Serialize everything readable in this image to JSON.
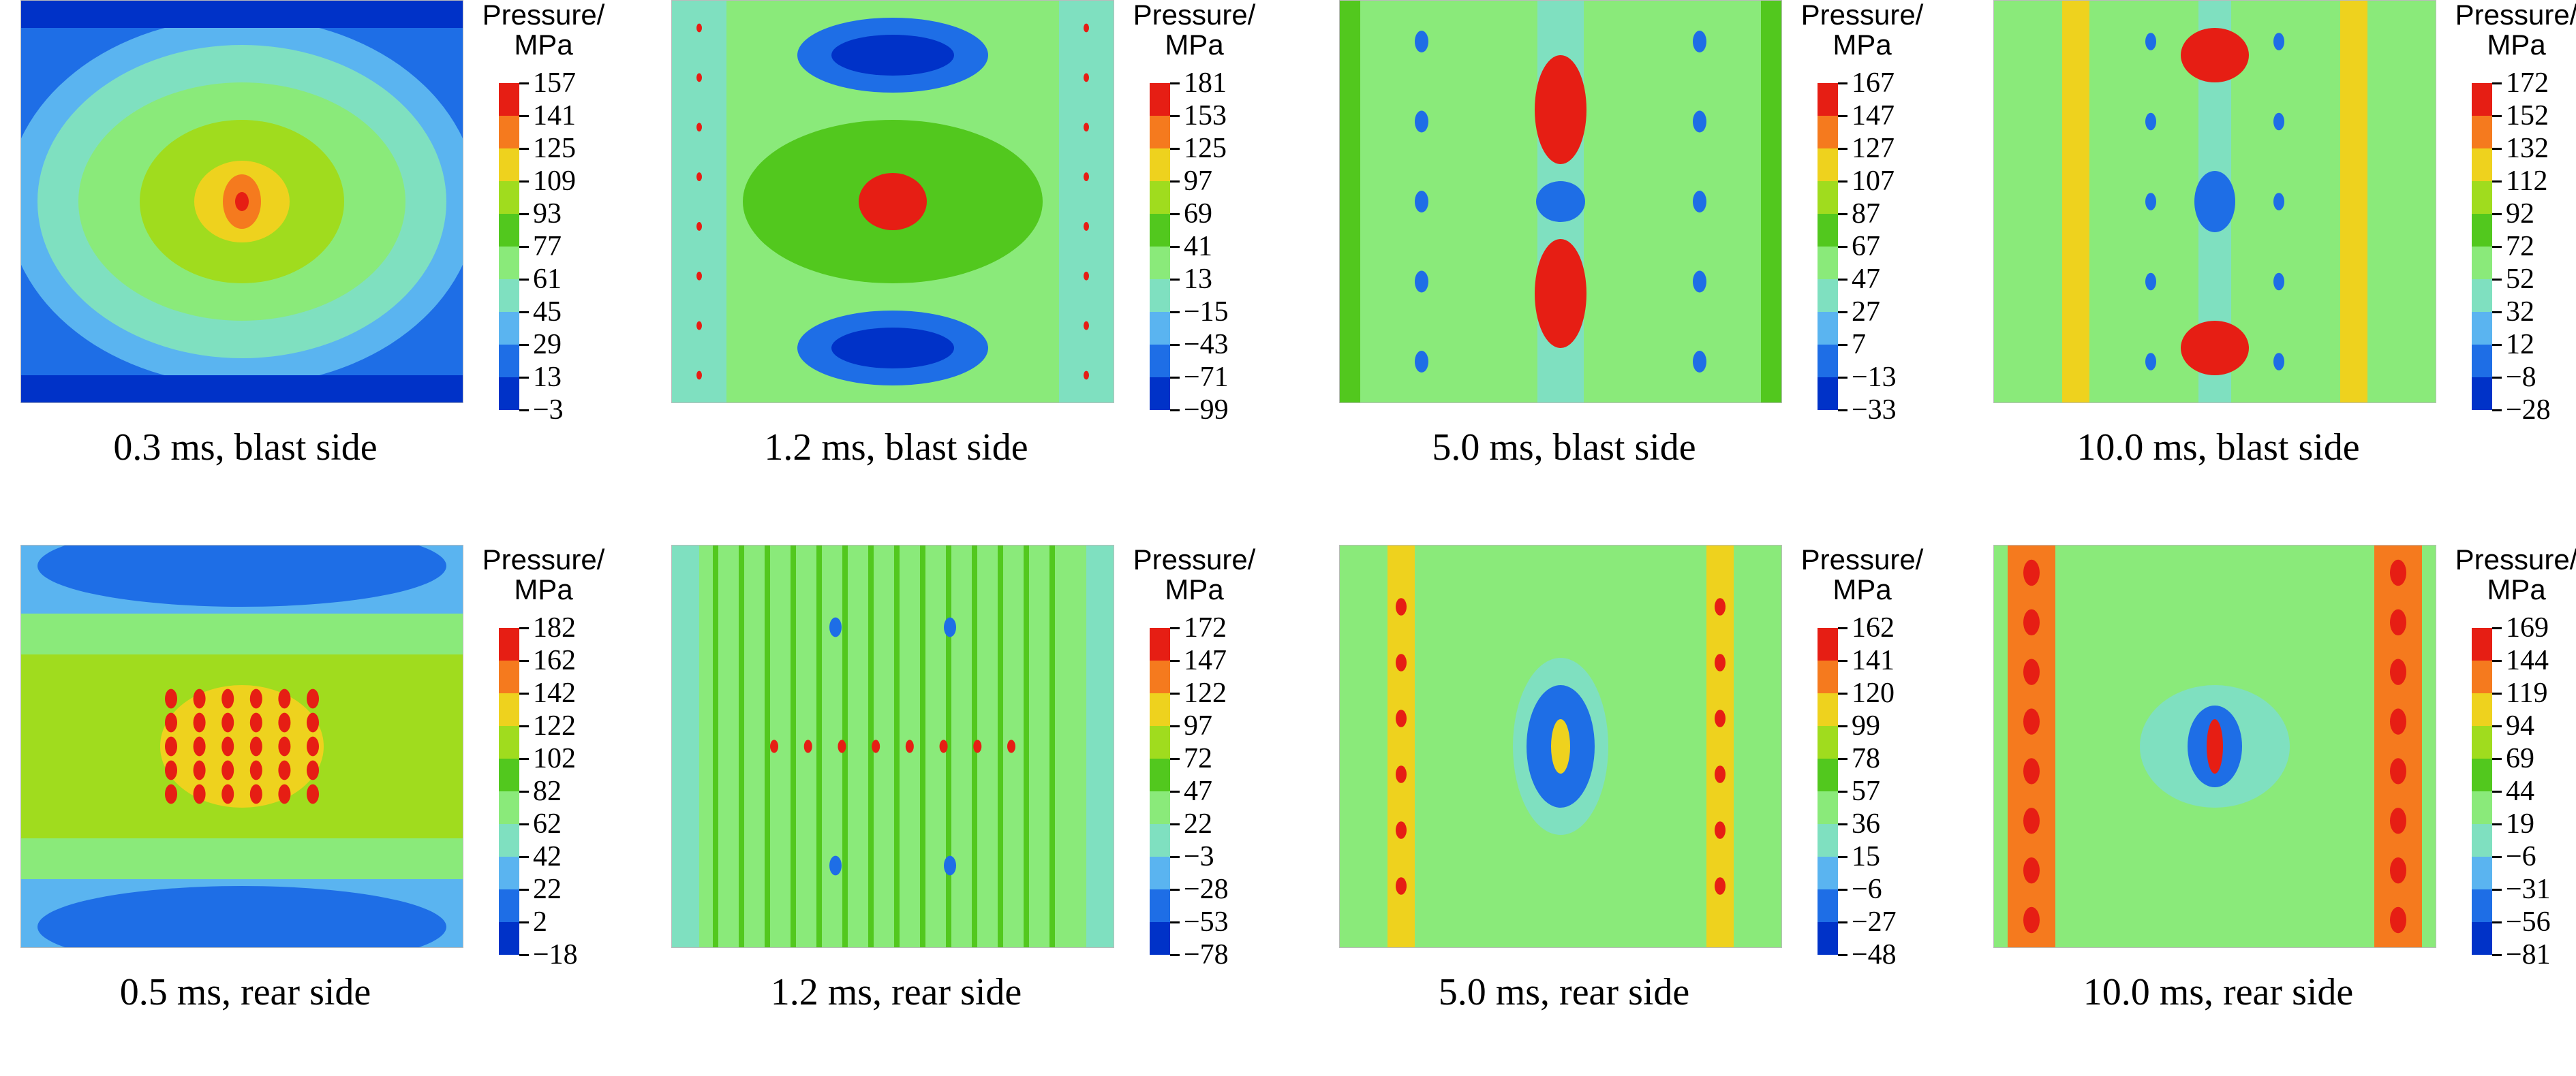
{
  "colors": {
    "scale": [
      "#0032c8",
      "#1e6ee6",
      "#5ab4f0",
      "#7fe0c0",
      "#8aea7a",
      "#52c81e",
      "#a0dc1e",
      "#eed21e",
      "#f57a1e",
      "#e61e14"
    ]
  },
  "legend_title": {
    "line1": "Pressure/",
    "line2": "MPa"
  },
  "panels": [
    {
      "caption": "0.3 ms, blast side",
      "pattern": "ellipse",
      "ticks": [
        "157",
        "141",
        "125",
        "109",
        "93",
        "77",
        "61",
        "45",
        "29",
        "13",
        "−3"
      ]
    },
    {
      "caption": "1.2 ms, blast side",
      "pattern": "blast-center",
      "ticks": [
        "181",
        "153",
        "125",
        "97",
        "69",
        "41",
        "13",
        "−15",
        "−43",
        "−71",
        "−99"
      ]
    },
    {
      "caption": "5.0 ms, blast side",
      "pattern": "column",
      "ticks": [
        "167",
        "147",
        "127",
        "107",
        "87",
        "67",
        "47",
        "27",
        "7",
        "−13",
        "−33"
      ]
    },
    {
      "caption": "10.0 ms, blast side",
      "pattern": "column-bands",
      "ticks": [
        "172",
        "152",
        "132",
        "112",
        "92",
        "72",
        "52",
        "32",
        "12",
        "−8",
        "−28"
      ]
    },
    {
      "caption": "0.5 ms, rear side",
      "pattern": "rear-center",
      "ticks": [
        "182",
        "162",
        "142",
        "122",
        "102",
        "82",
        "62",
        "42",
        "22",
        "2",
        "−18"
      ]
    },
    {
      "caption": "1.2 ms, rear side",
      "pattern": "rear-spots",
      "ticks": [
        "172",
        "147",
        "122",
        "97",
        "72",
        "47",
        "22",
        "−3",
        "−28",
        "−53",
        "−78"
      ]
    },
    {
      "caption": "5.0 ms, rear side",
      "pattern": "rear-diamond",
      "ticks": [
        "162",
        "141",
        "120",
        "99",
        "78",
        "57",
        "36",
        "15",
        "−6",
        "−27",
        "−48"
      ]
    },
    {
      "caption": "10.0 ms, rear side",
      "pattern": "rear-bands",
      "ticks": [
        "169",
        "144",
        "119",
        "94",
        "69",
        "44",
        "19",
        "−6",
        "−31",
        "−56",
        "−81"
      ]
    }
  ]
}
